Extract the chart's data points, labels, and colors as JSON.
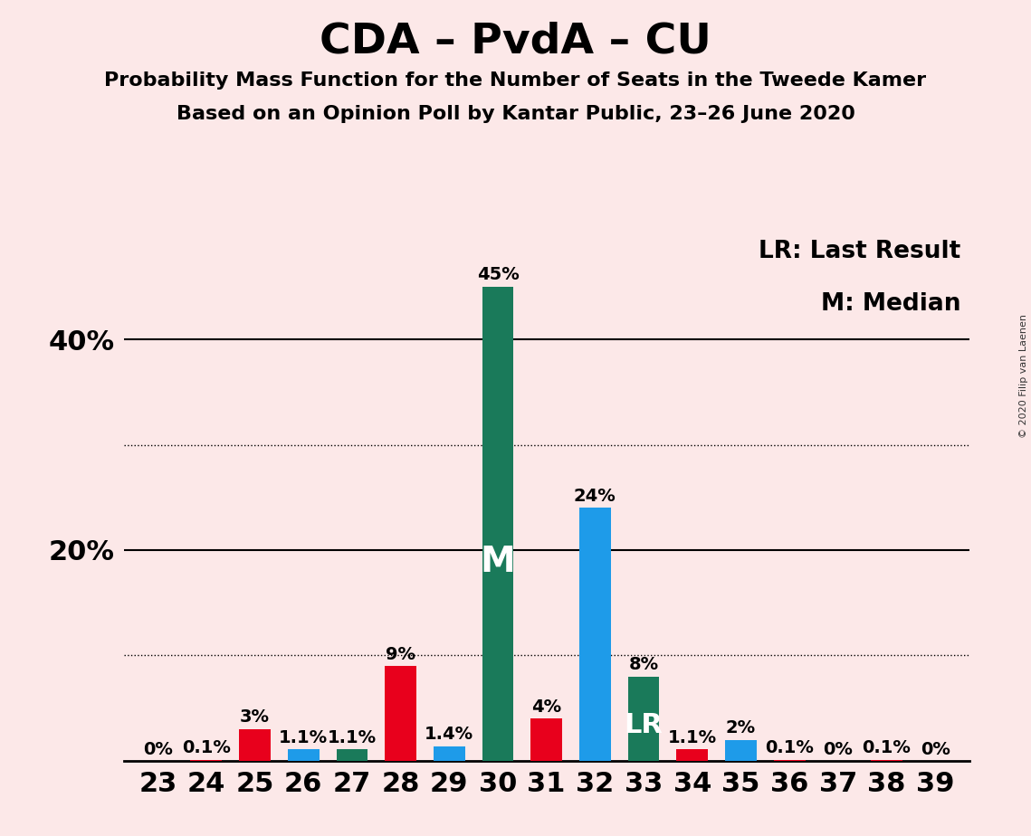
{
  "title": "CDA – PvdA – CU",
  "subtitle1": "Probability Mass Function for the Number of Seats in the Tweede Kamer",
  "subtitle2": "Based on an Opinion Poll by Kantar Public, 23–26 June 2020",
  "copyright": "© 2020 Filip van Laenen",
  "legend_lr": "LR: Last Result",
  "legend_m": "M: Median",
  "background_color": "#fce8e8",
  "seats": [
    23,
    24,
    25,
    26,
    27,
    28,
    29,
    30,
    31,
    32,
    33,
    34,
    35,
    36,
    37,
    38,
    39
  ],
  "values": [
    0.0,
    0.1,
    3.0,
    1.1,
    1.1,
    9.0,
    1.4,
    45.0,
    4.0,
    24.0,
    8.0,
    1.1,
    2.0,
    0.1,
    0.0,
    0.1,
    0.0
  ],
  "labels": [
    "0%",
    "0.1%",
    "3%",
    "1.1%",
    "1.1%",
    "9%",
    "1.4%",
    "45%",
    "4%",
    "24%",
    "8%",
    "1.1%",
    "2%",
    "0.1%",
    "0%",
    "0.1%",
    "0%"
  ],
  "colors": [
    "#e8001c",
    "#e8001c",
    "#e8001c",
    "#1e9be9",
    "#1a7a5a",
    "#e8001c",
    "#1e9be9",
    "#1a7a5a",
    "#e8001c",
    "#1e9be9",
    "#1a7a5a",
    "#e8001c",
    "#1e9be9",
    "#e8001c",
    "#e8001c",
    "#e8001c",
    "#e8001c"
  ],
  "median_seat": 30,
  "lr_seat": 33,
  "median_label": "M",
  "lr_label": "LR",
  "ylim": [
    0,
    50
  ],
  "yticks": [
    20,
    40
  ],
  "ytick_labels": [
    "20%",
    "40%"
  ],
  "solid_lines": [
    20,
    40
  ],
  "dotted_lines": [
    10,
    30
  ],
  "bar_width": 0.65,
  "title_fontsize": 34,
  "subtitle_fontsize": 16,
  "axis_tick_fontsize": 22,
  "bar_label_fontsize": 14,
  "legend_fontsize": 19,
  "inbar_fontsize_m": 28,
  "inbar_fontsize_lr": 22
}
